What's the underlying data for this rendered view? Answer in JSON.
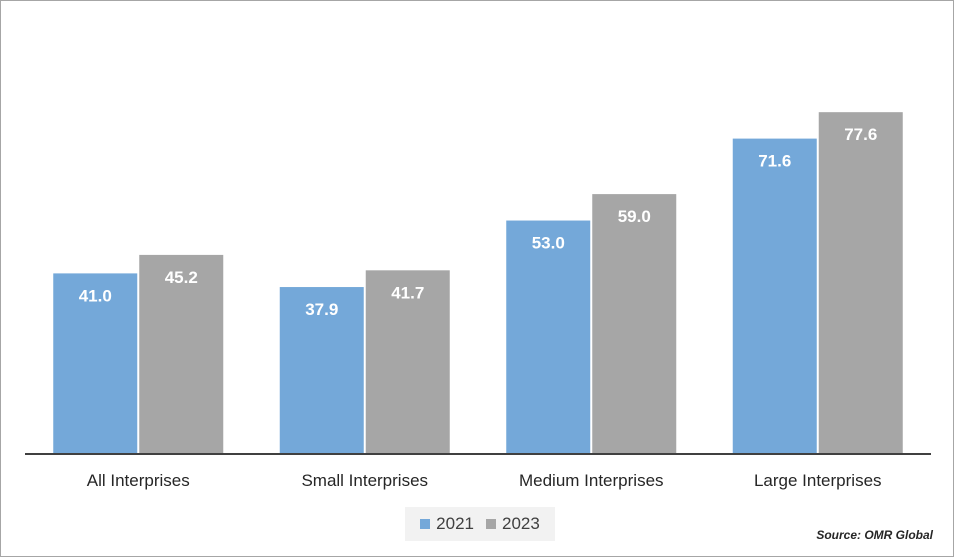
{
  "chart_data": {
    "type": "bar",
    "categories": [
      "All Interprises",
      "Small Interprises",
      "Medium Interprises",
      "Large Interprises"
    ],
    "series": [
      {
        "name": "2021",
        "values": [
          41.0,
          37.9,
          53.0,
          71.6
        ],
        "color": "#74a8d9"
      },
      {
        "name": "2023",
        "values": [
          45.2,
          41.7,
          59.0,
          77.6
        ],
        "color": "#a6a6a6"
      }
    ],
    "title": "",
    "xlabel": "",
    "ylabel": "",
    "ylim": [
      0,
      80
    ],
    "grid": false,
    "legend_position": "bottom"
  },
  "source": "Source: OMR Global"
}
